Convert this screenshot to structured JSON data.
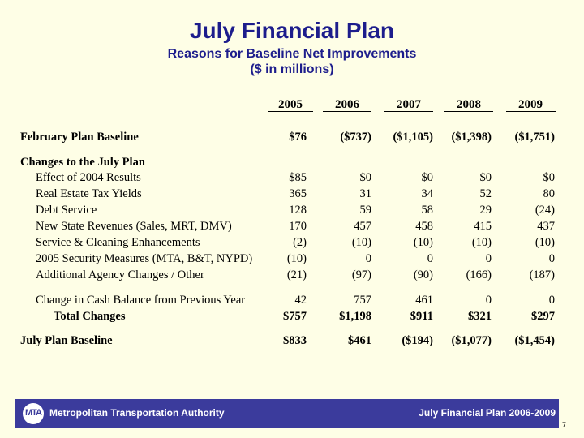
{
  "title": "July Financial Plan",
  "subtitle_line1": "Reasons for Baseline Net Improvements",
  "subtitle_line2": "($ in millions)",
  "years": [
    "2005",
    "2006",
    "2007",
    "2008",
    "2009"
  ],
  "rows": {
    "feb_baseline": {
      "label": "February Plan Baseline",
      "values": [
        "$76",
        "($737)",
        "($1,105)",
        "($1,398)",
        "($1,751)"
      ]
    },
    "changes_header": {
      "label": "Changes to the July Plan"
    },
    "effect_2004": {
      "label": "Effect of 2004 Results",
      "values": [
        "$85",
        "$0",
        "$0",
        "$0",
        "$0"
      ]
    },
    "real_estate": {
      "label": "Real Estate Tax Yields",
      "values": [
        "365",
        "31",
        "34",
        "52",
        "80"
      ]
    },
    "debt_service": {
      "label": "Debt Service",
      "values": [
        "128",
        "59",
        "58",
        "29",
        "(24)"
      ]
    },
    "state_revenues": {
      "label": "New State Revenues (Sales, MRT, DMV)",
      "values": [
        "170",
        "457",
        "458",
        "415",
        "437"
      ]
    },
    "service_cleaning": {
      "label": "Service & Cleaning Enhancements",
      "values": [
        "(2)",
        "(10)",
        "(10)",
        "(10)",
        "(10)"
      ]
    },
    "security": {
      "label": "2005 Security Measures (MTA, B&T, NYPD)",
      "values": [
        "(10)",
        "0",
        "0",
        "0",
        "0"
      ]
    },
    "agency_changes": {
      "label": "Additional Agency Changes / Other",
      "values": [
        "(21)",
        "(97)",
        "(90)",
        "(166)",
        "(187)"
      ]
    },
    "cash_balance": {
      "label": "Change in Cash Balance from Previous Year",
      "values": [
        "42",
        "757",
        "461",
        "0",
        "0"
      ]
    },
    "total_changes": {
      "label": "Total Changes",
      "values": [
        "$757",
        "$1,198",
        "$911",
        "$321",
        "$297"
      ]
    },
    "july_baseline": {
      "label": "July Plan Baseline",
      "values": [
        "$833",
        "$461",
        "($194)",
        "($1,077)",
        "($1,454)"
      ]
    }
  },
  "footer": {
    "logo_text": "MTA",
    "org_name": "Metropolitan Transportation Authority",
    "plan_name": "July Financial Plan 2006-2009",
    "page_number": "7"
  }
}
